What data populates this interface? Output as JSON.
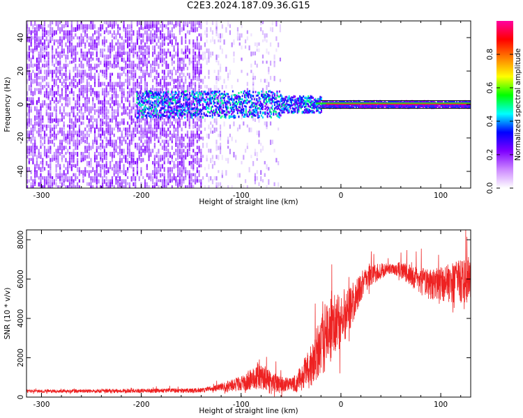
{
  "title": "C2E3.2024.187.09.36.G15",
  "chart_data": [
    {
      "type": "heatmap",
      "xlabel": "Height of straight line (km)",
      "ylabel": "Frequency (Hz)",
      "xlim": [
        -315,
        130
      ],
      "ylim": [
        -50,
        50
      ],
      "xticks": [
        -300,
        -200,
        -100,
        0,
        100
      ],
      "yticks": [
        -40,
        -20,
        0,
        20,
        40
      ],
      "xtick_labels": [
        "-300",
        "-200",
        "-100",
        "0",
        "100"
      ],
      "ytick_labels": [
        "-40",
        "-20",
        "0",
        "20",
        "40"
      ],
      "colorbar": {
        "label": "Normalized spectral amplitude",
        "range": [
          0,
          1
        ],
        "ticks": [
          0.0,
          0.2,
          0.4,
          0.6,
          0.8
        ],
        "tick_labels": [
          "0.0",
          "0.2",
          "0.4",
          "0.6",
          "0.8"
        ],
        "colormap": [
          "#ffffff",
          "#cc88ff",
          "#7f00ff",
          "#0000ff",
          "#00ffff",
          "#00ff00",
          "#ffff00",
          "#ff8000",
          "#ff0000",
          "#ff00a0"
        ]
      },
      "ridge": {
        "description_values": {
          "frequency_hz": 0,
          "x_start": -205,
          "x_end": 130,
          "core_color": "#ff2020",
          "halo_color": "#2020ff"
        }
      },
      "grid": false
    },
    {
      "type": "line",
      "xlabel": "Height of straight line (km)",
      "ylabel": "SNR (10 * v/v)",
      "xlim": [
        -315,
        130
      ],
      "ylim": [
        0,
        8500
      ],
      "xticks": [
        -300,
        -200,
        -100,
        0,
        100
      ],
      "yticks": [
        0,
        2000,
        4000,
        6000,
        8000
      ],
      "xtick_labels": [
        "-300",
        "-200",
        "-100",
        "0",
        "100"
      ],
      "ytick_labels": [
        "0",
        "2000",
        "4000",
        "6000",
        "8000"
      ],
      "series_color": "#ee2222",
      "envelope_points": [
        {
          "x": -315,
          "y": 300
        },
        {
          "x": -200,
          "y": 320
        },
        {
          "x": -140,
          "y": 340
        },
        {
          "x": -120,
          "y": 500
        },
        {
          "x": -100,
          "y": 700
        },
        {
          "x": -90,
          "y": 900
        },
        {
          "x": -80,
          "y": 1100
        },
        {
          "x": -70,
          "y": 700
        },
        {
          "x": -60,
          "y": 650
        },
        {
          "x": -45,
          "y": 700
        },
        {
          "x": -40,
          "y": 1000
        },
        {
          "x": -30,
          "y": 1500
        },
        {
          "x": -20,
          "y": 2700
        },
        {
          "x": -10,
          "y": 3500
        },
        {
          "x": 0,
          "y": 4000
        },
        {
          "x": 10,
          "y": 4600
        },
        {
          "x": 20,
          "y": 5600
        },
        {
          "x": 30,
          "y": 6200
        },
        {
          "x": 45,
          "y": 6500
        },
        {
          "x": 60,
          "y": 6500
        },
        {
          "x": 75,
          "y": 6000
        },
        {
          "x": 90,
          "y": 5700
        },
        {
          "x": 110,
          "y": 5800
        },
        {
          "x": 130,
          "y": 6000
        }
      ],
      "noise_amplitude": [
        {
          "x": -315,
          "y": 80
        },
        {
          "x": -130,
          "y": 120
        },
        {
          "x": -100,
          "y": 400
        },
        {
          "x": -80,
          "y": 700
        },
        {
          "x": -50,
          "y": 300
        },
        {
          "x": -35,
          "y": 900
        },
        {
          "x": -15,
          "y": 1800
        },
        {
          "x": 0,
          "y": 1500
        },
        {
          "x": 20,
          "y": 700
        },
        {
          "x": 50,
          "y": 250
        },
        {
          "x": 80,
          "y": 700
        },
        {
          "x": 130,
          "y": 1200
        }
      ],
      "grid": false
    }
  ]
}
